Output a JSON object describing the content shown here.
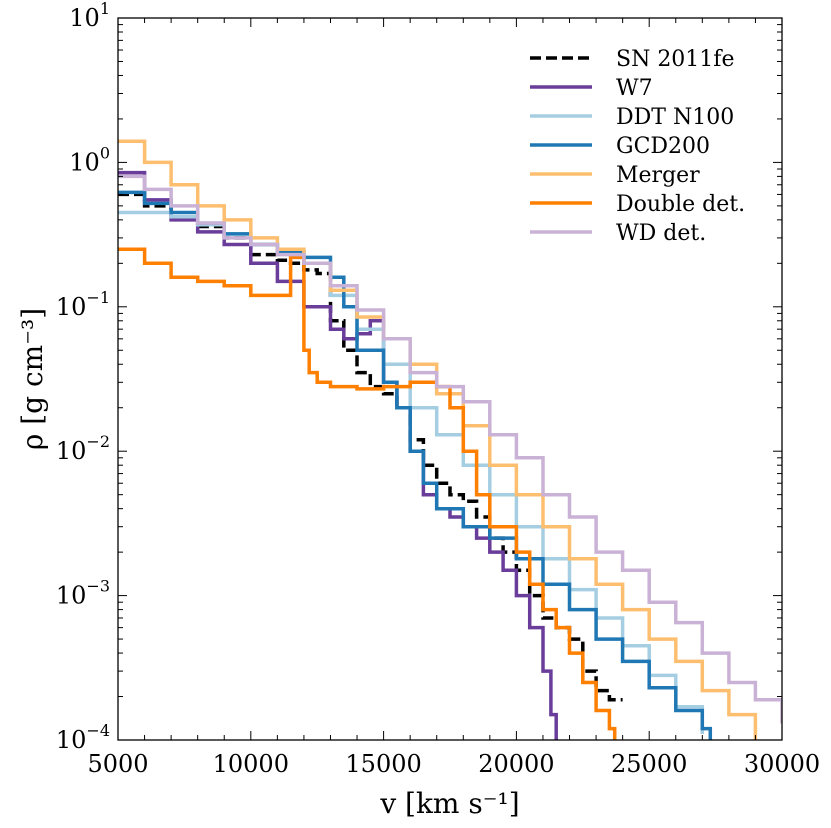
{
  "chart_data": {
    "type": "line",
    "xscale": "linear",
    "yscale": "log",
    "xlim": [
      5000,
      30000
    ],
    "ylim": [
      0.0001,
      10
    ],
    "xlabel": "v  [km  s⁻¹]",
    "ylabel": "ρ  [g  cm⁻³]",
    "x_ticks": [
      {
        "value": 5000,
        "label": "5000"
      },
      {
        "value": 10000,
        "label": "10000"
      },
      {
        "value": 15000,
        "label": "15000"
      },
      {
        "value": 20000,
        "label": "20000"
      },
      {
        "value": 25000,
        "label": "25000"
      },
      {
        "value": 30000,
        "label": "30000"
      }
    ],
    "y_ticks": [
      {
        "value": 0.0001,
        "base": "10",
        "exp": "−4"
      },
      {
        "value": 0.001,
        "base": "10",
        "exp": "−3"
      },
      {
        "value": 0.01,
        "base": "10",
        "exp": "−2"
      },
      {
        "value": 0.1,
        "base": "10",
        "exp": "−1"
      },
      {
        "value": 1,
        "base": "10",
        "exp": "0"
      },
      {
        "value": 10,
        "base": "10",
        "exp": "1"
      }
    ],
    "legend_position": "top-right",
    "series": [
      {
        "name": "SN 2011fe",
        "color": "#000000",
        "dashed": true,
        "x": [
          5000,
          6000,
          7000,
          8000,
          9000,
          10000,
          11000,
          11500,
          12000,
          12500,
          13000,
          13500,
          14000,
          14500,
          15000,
          15500,
          16000,
          16500,
          17000,
          17500,
          18000,
          18500,
          19000,
          19500,
          20000,
          20500,
          21000,
          21500,
          22000,
          22500,
          23000,
          23500,
          24000
        ],
        "y": [
          0.6,
          0.5,
          0.42,
          0.36,
          0.3,
          0.23,
          0.21,
          0.2,
          0.18,
          0.17,
          0.08,
          0.05,
          0.035,
          0.028,
          0.025,
          0.02,
          0.012,
          0.008,
          0.006,
          0.005,
          0.0045,
          0.0035,
          0.0025,
          0.002,
          0.0015,
          0.001,
          0.0007,
          0.0006,
          0.0005,
          0.0003,
          0.00022,
          0.00019,
          0.00019
        ]
      },
      {
        "name": "W7",
        "color": "#6a3d9a",
        "dashed": false,
        "x": [
          5000,
          6000,
          7000,
          8000,
          9000,
          10000,
          11000,
          12000,
          13000,
          13500,
          14000,
          14500,
          15000,
          15500,
          16000,
          16500,
          17000,
          17500,
          18000,
          18500,
          19000,
          19500,
          20000,
          20500,
          21000,
          21300,
          21500
        ],
        "y": [
          0.85,
          0.55,
          0.4,
          0.33,
          0.27,
          0.2,
          0.15,
          0.1,
          0.07,
          0.06,
          0.065,
          0.08,
          0.03,
          0.02,
          0.01,
          0.005,
          0.004,
          0.0035,
          0.003,
          0.0025,
          0.002,
          0.0015,
          0.001,
          0.0006,
          0.0003,
          0.00015,
          0.0001
        ]
      },
      {
        "name": "DDT N100",
        "color": "#a6cee3",
        "dashed": false,
        "x": [
          5000,
          6000,
          7000,
          8000,
          9000,
          10000,
          11000,
          12000,
          13000,
          14000,
          15000,
          16000,
          17000,
          18000,
          19000,
          20000,
          21000,
          22000,
          23000,
          24000,
          25000,
          26000,
          27000
        ],
        "y": [
          0.45,
          0.45,
          0.42,
          0.37,
          0.32,
          0.27,
          0.24,
          0.2,
          0.12,
          0.07,
          0.04,
          0.02,
          0.013,
          0.008,
          0.005,
          0.003,
          0.0018,
          0.0011,
          0.0007,
          0.00045,
          0.00028,
          0.00017,
          0.00011
        ]
      },
      {
        "name": "GCD200",
        "color": "#1f78b4",
        "dashed": false,
        "x": [
          5000,
          6000,
          7000,
          8000,
          9000,
          10000,
          11000,
          12000,
          13000,
          13500,
          14000,
          15000,
          15500,
          16000,
          16500,
          17000,
          18000,
          19000,
          20000,
          21000,
          22000,
          23000,
          24000,
          25000,
          26000,
          27000,
          27300
        ],
        "y": [
          0.62,
          0.52,
          0.45,
          0.38,
          0.32,
          0.27,
          0.24,
          0.22,
          0.16,
          0.1,
          0.05,
          0.03,
          0.02,
          0.01,
          0.006,
          0.004,
          0.003,
          0.0025,
          0.0018,
          0.0012,
          0.0008,
          0.0005,
          0.00035,
          0.00023,
          0.00016,
          0.00012,
          0.0001
        ]
      },
      {
        "name": "Merger",
        "color": "#fdbf6f",
        "dashed": false,
        "x": [
          5000,
          6000,
          7000,
          8000,
          9000,
          10000,
          11000,
          12000,
          13000,
          14000,
          15000,
          16000,
          17000,
          18000,
          19000,
          20000,
          21000,
          22000,
          23000,
          24000,
          25000,
          26000,
          27000,
          28000,
          29000
        ],
        "y": [
          1.4,
          1.0,
          0.7,
          0.5,
          0.4,
          0.3,
          0.25,
          0.2,
          0.13,
          0.085,
          0.06,
          0.04,
          0.025,
          0.015,
          0.008,
          0.005,
          0.003,
          0.0018,
          0.0012,
          0.0008,
          0.0005,
          0.00035,
          0.00022,
          0.00015,
          0.0001
        ]
      },
      {
        "name": "Double det.",
        "color": "#ff7f00",
        "dashed": false,
        "x": [
          5000,
          6000,
          7000,
          8000,
          9000,
          10000,
          11000,
          11500,
          12000,
          12200,
          12500,
          13000,
          14000,
          15000,
          16000,
          17000,
          17500,
          18000,
          18500,
          19000,
          20000,
          20500,
          21000,
          21500,
          22000,
          22500,
          23000,
          23500,
          23700
        ],
        "y": [
          0.25,
          0.2,
          0.16,
          0.15,
          0.14,
          0.12,
          0.12,
          0.22,
          0.05,
          0.035,
          0.03,
          0.028,
          0.027,
          0.028,
          0.03,
          0.028,
          0.02,
          0.01,
          0.005,
          0.003,
          0.002,
          0.0012,
          0.0008,
          0.0006,
          0.0004,
          0.00025,
          0.00016,
          0.00012,
          0.0001
        ]
      },
      {
        "name": "WD det.",
        "color": "#cab2d6",
        "dashed": false,
        "x": [
          5000,
          6000,
          7000,
          8000,
          9000,
          10000,
          11000,
          12000,
          13000,
          14000,
          15000,
          16000,
          17000,
          18000,
          19000,
          20000,
          21000,
          22000,
          23000,
          24000,
          25000,
          26000,
          27000,
          28000,
          29000,
          30000
        ],
        "y": [
          0.8,
          0.65,
          0.5,
          0.38,
          0.3,
          0.27,
          0.23,
          0.2,
          0.14,
          0.095,
          0.06,
          0.035,
          0.028,
          0.022,
          0.013,
          0.009,
          0.005,
          0.0035,
          0.002,
          0.0015,
          0.0009,
          0.00065,
          0.0004,
          0.00025,
          0.00019,
          0.00013
        ]
      }
    ]
  }
}
